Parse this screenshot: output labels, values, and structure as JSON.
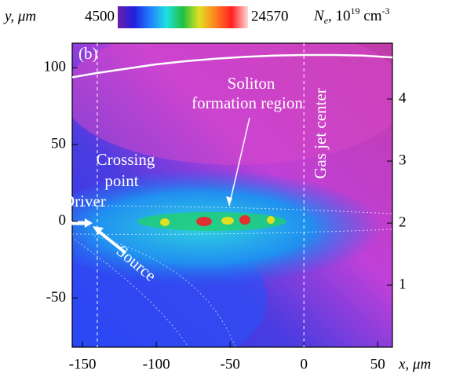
{
  "chart_data": {
    "type": "image",
    "panel_label": "(b)",
    "xlabel": "x, μm",
    "ylabel": "y, μm",
    "y2label": [
      "N",
      "e",
      ", 10",
      "19",
      " cm",
      "-3"
    ],
    "xlim": [
      -157,
      60
    ],
    "ylim": [
      -82,
      116
    ],
    "y2lim": [
      0,
      4.9
    ],
    "xticks": [
      -150,
      -100,
      -50,
      0,
      50
    ],
    "yticks": [
      -50,
      0,
      50,
      100
    ],
    "y2ticks": [
      1,
      2,
      3,
      4
    ],
    "colorbar": {
      "ticks": [
        4500,
        24570
      ],
      "colors": [
        "#6a1fa8",
        "#2020e0",
        "#2080ff",
        "#20e0e0",
        "#20c040",
        "#e0e020",
        "#ff8020",
        "#ff2020",
        "#ffd8d8"
      ]
    },
    "vlines": [
      -140,
      0
    ],
    "profile": {
      "axis": "y2",
      "color": "#ffffff",
      "x": [
        -157,
        -140,
        -120,
        -100,
        -80,
        -60,
        -40,
        -20,
        0,
        20,
        40,
        60
      ],
      "values": [
        4.35,
        4.42,
        4.49,
        4.56,
        4.61,
        4.65,
        4.68,
        4.7,
        4.71,
        4.71,
        4.7,
        4.67
      ]
    },
    "annotations": [
      "Soliton",
      "formation region",
      "Crossing",
      "point",
      "Driver",
      "Source",
      "Gas jet center"
    ]
  }
}
